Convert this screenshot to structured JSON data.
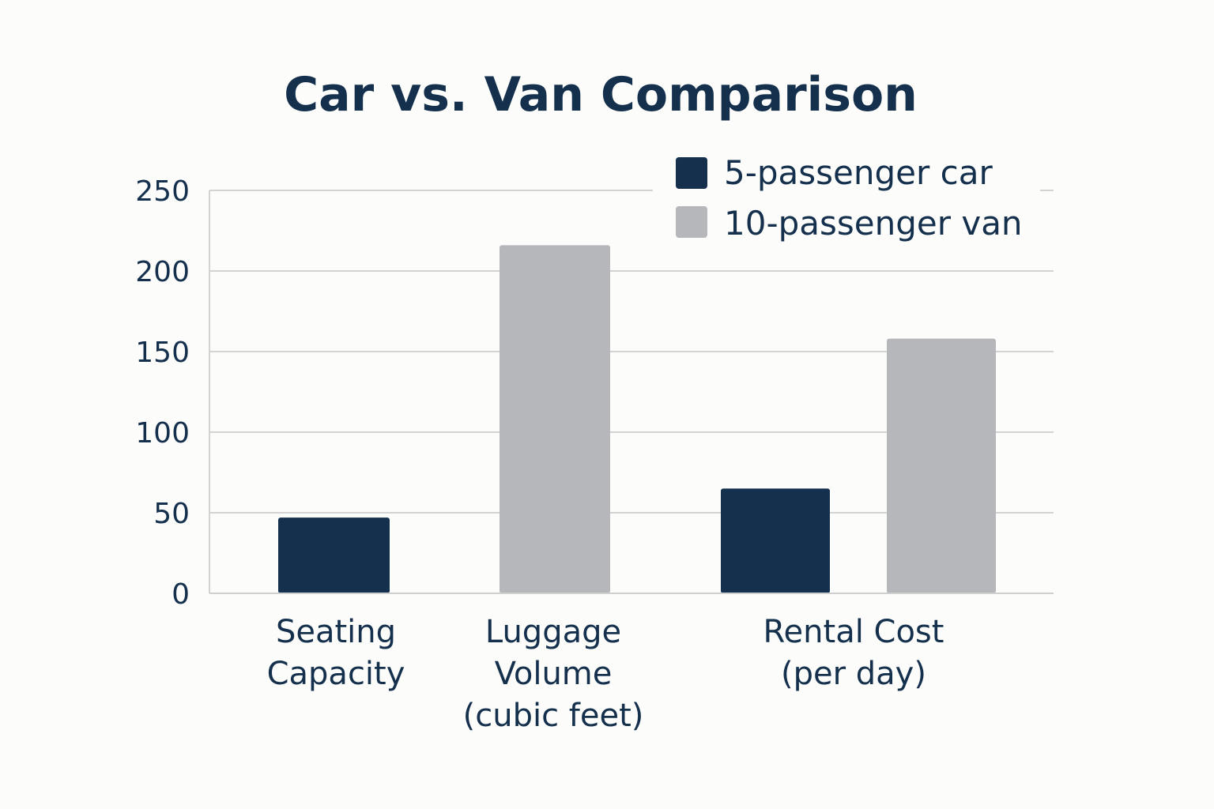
{
  "chart_data": {
    "type": "bar",
    "title": "Car vs. Van Comparison",
    "xlabel": "",
    "ylabel": "",
    "ylim": [
      0,
      250
    ],
    "yticks": [
      "0",
      "50",
      "100",
      "150",
      "200",
      "250"
    ],
    "grid": true,
    "legend_position": "top-right",
    "categories": [
      [
        "Seating",
        "Capacity"
      ],
      [
        "Luggage",
        "Volume",
        "(cubic feet)"
      ],
      [
        "Rental Cost",
        "(per day)"
      ]
    ],
    "series": [
      {
        "name": "5-passenger car",
        "color": "#14304d",
        "values": [
          47,
          null,
          65
        ]
      },
      {
        "name": "10-passenger van",
        "color": "#b6b7ba",
        "values": [
          null,
          216,
          158
        ]
      }
    ]
  }
}
